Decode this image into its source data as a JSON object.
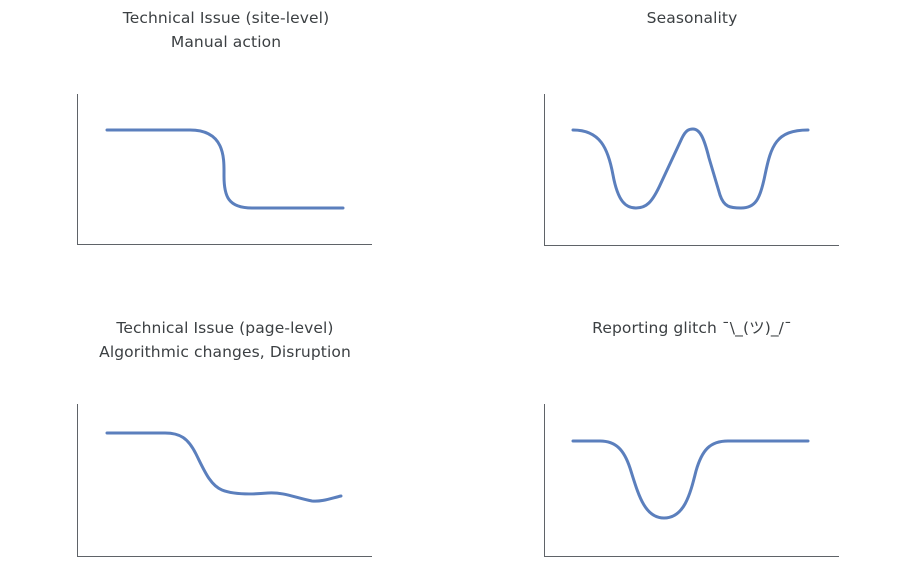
{
  "panels": [
    {
      "id": "site-level",
      "title_lines": [
        "Technical Issue (site-level)",
        "Manual action"
      ]
    },
    {
      "id": "seasonality",
      "title_lines": [
        "Seasonality"
      ]
    },
    {
      "id": "page-level",
      "title_lines": [
        "Technical Issue (page-level)",
        "Algorithmic changes, Disruption"
      ]
    },
    {
      "id": "reporting-glitch",
      "title_lines": [
        "Reporting glitch ¯\\_(ツ)_/¯"
      ]
    }
  ],
  "colors": {
    "trend_line": "#5b7fbd",
    "axis": "#5f6368",
    "text": "#3c4043"
  }
}
